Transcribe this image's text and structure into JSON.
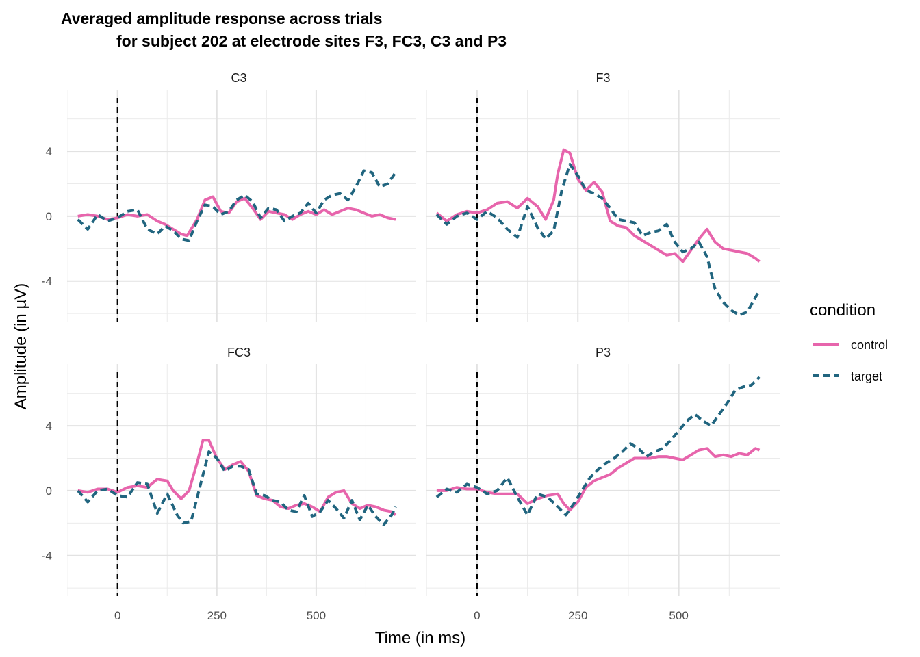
{
  "chart_data": {
    "type": "line",
    "title_line1": "Averaged amplitude response across trials",
    "title_line2": "for subject 202 at electrode sites F3, FC3, C3 and P3",
    "xlabel": "Time (in ms)",
    "ylabel": "Amplitude (in µV)",
    "xlim": [
      -127,
      750
    ],
    "ylim": [
      -6.5,
      7.8
    ],
    "x_ticks": [
      0,
      250,
      500
    ],
    "x_tick_labels": [
      "0",
      "250",
      "500"
    ],
    "y_ticks": [
      -4,
      0,
      4
    ],
    "y_tick_labels": [
      "-4",
      "0",
      "4"
    ],
    "grid": true,
    "vline_x": 0,
    "legend": {
      "title": "condition",
      "position": "right",
      "items": [
        {
          "name": "control",
          "color": "#E765AC",
          "dash": "solid"
        },
        {
          "name": "target",
          "color": "#21657F",
          "dash": "dashed"
        }
      ]
    },
    "panels": [
      {
        "name": "C3",
        "series": [
          {
            "name": "control",
            "x": [
              -100,
              -75,
              -50,
              -25,
              0,
              25,
              50,
              75,
              100,
              120,
              140,
              160,
              175,
              200,
              220,
              240,
              260,
              280,
              300,
              320,
              340,
              360,
              380,
              400,
              420,
              440,
              460,
              480,
              500,
              520,
              540,
              560,
              580,
              600,
              620,
              640,
              660,
              680,
              700
            ],
            "y": [
              0,
              0.1,
              0,
              -0.2,
              -0.1,
              0.1,
              0,
              0.1,
              -0.3,
              -0.5,
              -0.8,
              -1.1,
              -1.2,
              -0.2,
              1.0,
              1.2,
              0.3,
              0.2,
              0.9,
              1.1,
              0.5,
              -0.2,
              0.3,
              0.2,
              0.1,
              -0.2,
              0.1,
              0.3,
              0.1,
              0.4,
              0.1,
              0.3,
              0.5,
              0.4,
              0.2,
              0,
              0.1,
              -0.1,
              -0.2
            ]
          },
          {
            "name": "target",
            "x": [
              -100,
              -75,
              -50,
              -25,
              0,
              25,
              50,
              75,
              100,
              120,
              140,
              160,
              180,
              200,
              220,
              240,
              260,
              280,
              300,
              320,
              340,
              360,
              380,
              400,
              420,
              440,
              460,
              480,
              500,
              520,
              540,
              560,
              580,
              600,
              620,
              640,
              660,
              680,
              700
            ],
            "y": [
              -0.2,
              -0.8,
              0.1,
              -0.3,
              -0.1,
              0.3,
              0.4,
              -0.8,
              -1.1,
              -0.6,
              -0.9,
              -1.4,
              -1.5,
              -0.3,
              0.7,
              0.6,
              0.1,
              0.3,
              1.0,
              1.3,
              0.9,
              -0.1,
              0.5,
              0.4,
              -0.3,
              0,
              0.2,
              0.8,
              0.2,
              1.0,
              1.3,
              1.4,
              1.0,
              1.8,
              2.8,
              2.7,
              1.8,
              2.0,
              2.7
            ]
          }
        ]
      },
      {
        "name": "F3",
        "series": [
          {
            "name": "control",
            "x": [
              -100,
              -75,
              -50,
              -25,
              0,
              25,
              50,
              75,
              100,
              125,
              150,
              170,
              190,
              200,
              215,
              230,
              250,
              270,
              290,
              310,
              330,
              350,
              370,
              390,
              410,
              430,
              450,
              470,
              490,
              510,
              530,
              550,
              570,
              590,
              610,
              630,
              650,
              670,
              690,
              700
            ],
            "y": [
              0.2,
              -0.3,
              0.1,
              0.3,
              0.2,
              0.4,
              0.8,
              0.9,
              0.5,
              1.1,
              0.6,
              -0.2,
              1.0,
              2.6,
              4.1,
              3.9,
              2.3,
              1.6,
              2.1,
              1.5,
              -0.3,
              -0.6,
              -0.7,
              -1.2,
              -1.5,
              -1.8,
              -2.1,
              -2.4,
              -2.3,
              -2.8,
              -2.1,
              -1.4,
              -0.8,
              -1.6,
              -2.0,
              -2.1,
              -2.2,
              -2.3,
              -2.6,
              -2.8
            ]
          },
          {
            "name": "target",
            "x": [
              -100,
              -75,
              -50,
              -25,
              0,
              25,
              50,
              75,
              100,
              125,
              150,
              170,
              190,
              210,
              230,
              250,
              270,
              290,
              310,
              330,
              350,
              370,
              390,
              410,
              430,
              450,
              470,
              490,
              510,
              530,
              550,
              570,
              590,
              610,
              630,
              650,
              670,
              690,
              700
            ],
            "y": [
              0.1,
              -0.5,
              0,
              0.2,
              -0.2,
              0.3,
              -0.1,
              -0.8,
              -1.3,
              0.6,
              -0.7,
              -1.4,
              -0.9,
              1.6,
              3.2,
              2.5,
              1.6,
              1.4,
              1.1,
              0.5,
              -0.2,
              -0.3,
              -0.4,
              -1.2,
              -1.0,
              -0.9,
              -0.5,
              -1.6,
              -2.2,
              -2.0,
              -1.6,
              -2.5,
              -4.5,
              -5.3,
              -5.8,
              -6.1,
              -5.9,
              -5.0,
              -4.6
            ]
          }
        ]
      },
      {
        "name": "FC3",
        "series": [
          {
            "name": "control",
            "x": [
              -100,
              -75,
              -50,
              -25,
              0,
              25,
              50,
              75,
              100,
              125,
              140,
              160,
              180,
              200,
              215,
              230,
              250,
              270,
              290,
              310,
              330,
              350,
              370,
              390,
              410,
              430,
              450,
              470,
              490,
              510,
              530,
              550,
              570,
              590,
              610,
              630,
              650,
              670,
              690,
              700
            ],
            "y": [
              0,
              -0.1,
              0.1,
              0.1,
              -0.1,
              0.2,
              0.3,
              0.2,
              0.7,
              0.6,
              0,
              -0.5,
              0,
              1.7,
              3.1,
              3.1,
              2.0,
              1.3,
              1.6,
              1.8,
              1.2,
              -0.3,
              -0.5,
              -0.6,
              -1.0,
              -1.1,
              -0.9,
              -0.8,
              -1.0,
              -1.3,
              -0.4,
              -0.1,
              0,
              -0.8,
              -1.1,
              -0.9,
              -1.0,
              -1.2,
              -1.3,
              -1.5
            ]
          },
          {
            "name": "target",
            "x": [
              -100,
              -75,
              -50,
              -25,
              0,
              25,
              50,
              75,
              100,
              125,
              150,
              165,
              185,
              210,
              230,
              250,
              270,
              290,
              310,
              330,
              350,
              370,
              390,
              410,
              430,
              450,
              470,
              490,
              510,
              530,
              550,
              570,
              590,
              610,
              630,
              650,
              670,
              690,
              700
            ],
            "y": [
              0,
              -0.7,
              0,
              0.1,
              -0.3,
              -0.4,
              0.5,
              0.4,
              -1.4,
              -0.2,
              -1.5,
              -2.0,
              -1.9,
              0.5,
              2.4,
              2.0,
              1.2,
              1.5,
              1.5,
              1.3,
              -0.2,
              -0.3,
              -0.6,
              -0.7,
              -1.2,
              -1.3,
              -0.3,
              -1.6,
              -1.3,
              -0.6,
              -1.1,
              -1.7,
              -0.6,
              -1.8,
              -0.9,
              -1.6,
              -2.1,
              -1.5,
              -1.0
            ]
          }
        ]
      },
      {
        "name": "P3",
        "series": [
          {
            "name": "control",
            "x": [
              -100,
              -75,
              -50,
              -25,
              0,
              25,
              50,
              75,
              100,
              125,
              150,
              175,
              200,
              215,
              230,
              250,
              270,
              290,
              310,
              330,
              350,
              370,
              390,
              410,
              430,
              450,
              470,
              490,
              510,
              530,
              550,
              570,
              590,
              610,
              630,
              650,
              670,
              690,
              700
            ],
            "y": [
              0,
              0,
              0.2,
              0.1,
              0.1,
              -0.1,
              -0.2,
              -0.2,
              -0.2,
              -0.8,
              -0.5,
              -0.3,
              -0.2,
              -0.8,
              -1.2,
              -0.7,
              0.2,
              0.6,
              0.8,
              1.0,
              1.4,
              1.7,
              2.0,
              2.0,
              2.0,
              2.1,
              2.1,
              2.0,
              1.9,
              2.2,
              2.5,
              2.6,
              2.1,
              2.2,
              2.1,
              2.3,
              2.2,
              2.6,
              2.5
            ]
          },
          {
            "name": "target",
            "x": [
              -100,
              -75,
              -50,
              -25,
              0,
              25,
              50,
              75,
              100,
              125,
              150,
              175,
              200,
              220,
              240,
              260,
              280,
              300,
              320,
              340,
              360,
              380,
              400,
              420,
              440,
              460,
              480,
              500,
              520,
              540,
              560,
              580,
              600,
              620,
              640,
              660,
              680,
              700
            ],
            "y": [
              -0.4,
              0.1,
              -0.1,
              0.4,
              0.2,
              -0.2,
              0,
              0.8,
              -0.4,
              -1.5,
              -0.2,
              -0.4,
              -1.0,
              -1.5,
              -0.8,
              0,
              0.8,
              1.3,
              1.7,
              2.0,
              2.4,
              2.9,
              2.6,
              2.1,
              2.4,
              2.6,
              3.1,
              3.7,
              4.3,
              4.7,
              4.3,
              4.0,
              4.7,
              5.4,
              6.2,
              6.4,
              6.5,
              7.0
            ]
          }
        ]
      }
    ]
  }
}
